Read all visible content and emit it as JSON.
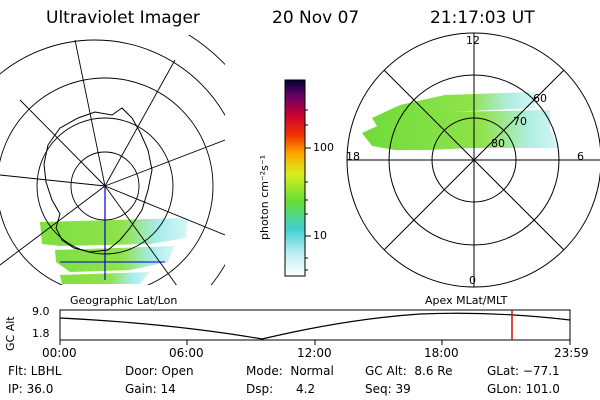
{
  "header": {
    "title": "Ultraviolet Imager",
    "date": "20 Nov 07",
    "time": "21:17:03 UT"
  },
  "colorbar": {
    "unit_label": "photon cm⁻²s⁻¹",
    "ticks": [
      "100",
      "10"
    ],
    "scale": "log"
  },
  "polar_plot": {
    "mlt_labels": {
      "top": "12",
      "right": "6",
      "bottom": "0",
      "left": "18"
    },
    "lat_labels": [
      "60",
      "70",
      "80"
    ]
  },
  "panel_titles": {
    "left": "Geographic Lat/Lon",
    "right": "Apex MLat/MLT"
  },
  "altitude_plot": {
    "axis_label": "GC Alt",
    "y_ticks": [
      "9.0",
      "1.8"
    ],
    "x_ticks": [
      "00:00",
      "06:00",
      "12:00",
      "18:00",
      "23:59"
    ],
    "marker_time": "21:17",
    "marker_color": "#d01010"
  },
  "info": {
    "row1": {
      "flt": "Flt: LBHL",
      "door": "Door: Open",
      "mode": "Mode:  Normal",
      "gcalt": "GC Alt:  8.6 Re",
      "glat": "GLat: −77.1"
    },
    "row2": {
      "ip": "IP: 36.0",
      "gain": "Gain: 14",
      "dsp": "Dsp:      4.2",
      "seq": "Seq: 39",
      "glon": "GLon: 101.0"
    }
  },
  "colors": {
    "aurora_green": "#7ee040",
    "aurora_cyan": "#a6ecec",
    "colorbar_stops": [
      "#ffffff",
      "#40d0d0",
      "#66dd33",
      "#ffee00",
      "#ff8800",
      "#dd0000",
      "#880066",
      "#000044"
    ]
  }
}
